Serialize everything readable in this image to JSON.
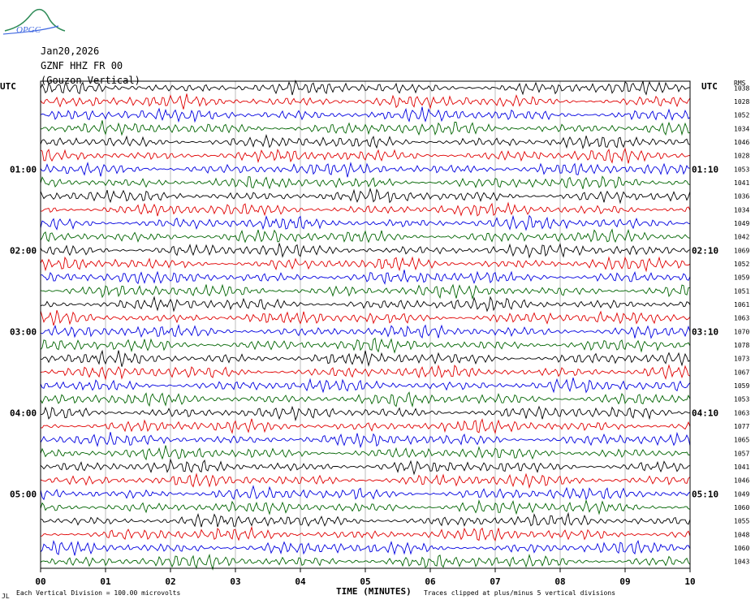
{
  "logo": {
    "text": "OPGC"
  },
  "header": {
    "date": "Jan20,2026",
    "channel": "GZNF HHZ FR 00",
    "station": "(Gouzon Vertical)"
  },
  "axis": {
    "left_title": "UTC",
    "right_title": "UTC",
    "rms_title": "RMS",
    "xlabel": "TIME (MINUTES)"
  },
  "footer": {
    "division": "Each Vertical Division =  100.00 microvolts",
    "clip": "Traces clipped at plus/minus 5 vertical divisions",
    "mark": "JL"
  },
  "colors": {
    "cycle": [
      "#000000",
      "#e00000",
      "#0000e0",
      "#006400"
    ],
    "grid": "#909090"
  },
  "chart_data": {
    "type": "line",
    "title": "",
    "xlabel": "TIME (MINUTES)",
    "ylabel": "UTC",
    "xlim": [
      0,
      10
    ],
    "x_ticks": [
      "00",
      "01",
      "02",
      "03",
      "04",
      "05",
      "06",
      "07",
      "08",
      "09",
      "10"
    ],
    "left_hour_labels": [
      {
        "row": 6,
        "label": "01:00"
      },
      {
        "row": 12,
        "label": "02:00"
      },
      {
        "row": 18,
        "label": "03:00"
      },
      {
        "row": 24,
        "label": "04:00"
      },
      {
        "row": 30,
        "label": "05:00"
      }
    ],
    "right_hour_labels": [
      {
        "row": 6,
        "label": "01:10"
      },
      {
        "row": 12,
        "label": "02:10"
      },
      {
        "row": 18,
        "label": "03:10"
      },
      {
        "row": 24,
        "label": "04:10"
      },
      {
        "row": 30,
        "label": "05:10"
      }
    ],
    "row_minutes": 10,
    "rows": 36,
    "rms_values": [
      "1038",
      "1028",
      "1052",
      "1034",
      "1046",
      "1028",
      "1053",
      "1041",
      "1036",
      "1034",
      "1049",
      "1042",
      "1069",
      "1052",
      "1059",
      "1051",
      "1061",
      "1063",
      "1070",
      "1078",
      "1073",
      "1067",
      "1059",
      "1053",
      "1063",
      "1077",
      "1065",
      "1057",
      "1041",
      "1046",
      "1049",
      "1060",
      "1055",
      "1048",
      "1060",
      "1043"
    ],
    "grid": true
  }
}
